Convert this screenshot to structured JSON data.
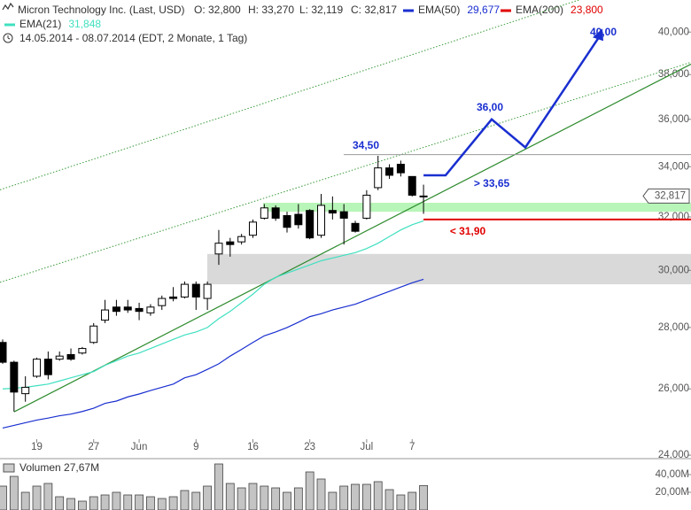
{
  "chart_data": {
    "type": "candlestick",
    "title": "Micron Technology Inc. (Last, USD)",
    "ohlc_labels": [
      "O: 32,800",
      "H: 33,270",
      "L: 32,119",
      "C: 32,817"
    ],
    "subtitle": "14.05.2014 - 08.07.2014 (EDT, 2 Monate, 1 Tag)",
    "categories": [
      null,
      null,
      null,
      "19",
      null,
      null,
      null,
      null,
      "27",
      null,
      null,
      null,
      "Jun",
      null,
      null,
      null,
      null,
      "9",
      null,
      null,
      null,
      null,
      "16",
      null,
      null,
      null,
      null,
      "23",
      null,
      null,
      null,
      null,
      "Jul",
      null,
      null,
      null,
      "7",
      null
    ],
    "open": [
      27.5,
      26.85,
      25.85,
      26.4,
      26.95,
      26.95,
      27.1,
      27.15,
      27.5,
      28.25,
      28.7,
      28.7,
      28.65,
      28.5,
      28.75,
      29.05,
      29.05,
      29.5,
      29.0,
      30.6,
      31.05,
      31.05,
      31.3,
      31.95,
      32.35,
      32.05,
      32.1,
      32.25,
      31.3,
      32.25,
      32.2,
      31.75,
      31.95,
      33.15,
      33.95,
      34.1,
      33.6,
      32.8
    ],
    "high": [
      27.6,
      26.9,
      26.4,
      27.0,
      27.2,
      27.2,
      27.3,
      27.35,
      28.15,
      28.95,
      28.95,
      28.95,
      28.85,
      28.8,
      29.1,
      29.4,
      29.6,
      29.6,
      29.6,
      31.5,
      31.2,
      31.35,
      31.9,
      32.5,
      32.45,
      32.2,
      32.5,
      32.3,
      32.9,
      32.8,
      32.5,
      31.85,
      33.05,
      34.45,
      34.1,
      34.25,
      33.6,
      33.27
    ],
    "low": [
      26.8,
      25.3,
      25.6,
      26.35,
      26.3,
      26.9,
      26.9,
      27.1,
      27.45,
      28.15,
      28.4,
      28.5,
      28.25,
      28.4,
      28.6,
      28.9,
      29.0,
      28.6,
      28.6,
      30.2,
      30.5,
      30.95,
      31.2,
      31.9,
      31.85,
      31.4,
      31.55,
      31.15,
      31.2,
      31.9,
      30.95,
      31.4,
      31.9,
      33.05,
      33.5,
      33.6,
      32.8,
      32.119
    ],
    "close": [
      26.85,
      25.9,
      26.05,
      26.95,
      26.45,
      27.05,
      26.95,
      27.3,
      28.05,
      28.6,
      28.55,
      28.6,
      28.55,
      28.7,
      29.0,
      29.0,
      29.5,
      29.05,
      29.5,
      31.0,
      30.95,
      31.25,
      31.8,
      32.35,
      31.95,
      31.6,
      31.7,
      31.2,
      32.45,
      32.15,
      31.95,
      31.45,
      32.85,
      33.95,
      33.65,
      33.75,
      32.85,
      32.817
    ],
    "up_color": "#ffffff",
    "down_color": "#000000",
    "last_label": "32,817",
    "overlays": [
      {
        "name": "EMA(50)",
        "value_label": "29,677",
        "color": "#1a2fd0",
        "values": [
          24.8,
          24.88,
          24.96,
          25.04,
          25.1,
          25.17,
          25.22,
          25.3,
          25.4,
          25.55,
          25.62,
          25.75,
          25.84,
          25.95,
          26.05,
          26.15,
          26.35,
          26.45,
          26.62,
          26.8,
          27.05,
          27.27,
          27.5,
          27.72,
          27.85,
          28.0,
          28.18,
          28.37,
          28.47,
          28.6,
          28.7,
          28.8,
          28.95,
          29.1,
          29.25,
          29.4,
          29.55,
          29.677
        ]
      },
      {
        "name": "EMA(200)",
        "value_label": "23,800",
        "color": "#e00000"
      },
      {
        "name": "EMA(21)",
        "value_label": "31,848",
        "color": "#40e0c0",
        "values": [
          26.0,
          26.02,
          26.05,
          26.1,
          26.15,
          26.25,
          26.35,
          26.45,
          26.55,
          26.75,
          26.9,
          27.05,
          27.15,
          27.3,
          27.45,
          27.6,
          27.75,
          27.85,
          28.0,
          28.3,
          28.55,
          28.85,
          29.15,
          29.5,
          29.75,
          29.9,
          30.05,
          30.2,
          30.35,
          30.45,
          30.55,
          30.65,
          30.8,
          31.0,
          31.25,
          31.5,
          31.7,
          31.848
        ]
      }
    ],
    "yscale": "log",
    "ylim": [
      23.9,
      40.7
    ],
    "yticks": [
      {
        "value": 24,
        "label": "24,000"
      },
      {
        "value": 26,
        "label": "26,000"
      },
      {
        "value": 28,
        "label": "28,000"
      },
      {
        "value": 30,
        "label": "30,000"
      },
      {
        "value": 32,
        "label": "32,000"
      },
      {
        "value": 34,
        "label": "34,000"
      },
      {
        "value": 36,
        "label": "36,000"
      },
      {
        "value": 38,
        "label": "38,000"
      },
      {
        "value": 40,
        "label": "40,000"
      }
    ],
    "levels": [
      {
        "value": 34.5,
        "label": "34,50",
        "color": "#999999"
      },
      {
        "value": 31.9,
        "label": "< 31,90",
        "color": "#e00000"
      }
    ],
    "zones": [
      {
        "from": 29.5,
        "to": 30.6,
        "color": "#d9d9d9"
      },
      {
        "from": 32.2,
        "to": 32.55,
        "color": "#b8f5b8"
      }
    ],
    "trendlines": [
      {
        "values": [
          25.11,
          32.6
        ],
        "color": "#2e8b2e",
        "style": "solid"
      },
      {
        "values": [
          29.6,
          34.8
        ],
        "color": "#3a9a3a",
        "style": "dotted"
      },
      {
        "values": [
          33.1,
          39.1
        ],
        "color": "#3a9a3a",
        "style": "dotted"
      }
    ],
    "forecast": {
      "color": "#1a2fd0",
      "values": [
        33.65,
        33.65,
        36.0,
        34.8,
        40.0
      ],
      "value_labels": [
        "> 33,65",
        null,
        "36,00",
        null,
        "40,00"
      ]
    },
    "volume": {
      "title": "Volumen 27,67M",
      "color": "#c4c4c4",
      "ylim": [
        0,
        56
      ],
      "yticks": [
        {
          "value": 20,
          "label": "20,00M"
        },
        {
          "value": 40,
          "label": "40,00M"
        }
      ],
      "values": [
        27,
        38,
        20,
        27,
        30,
        15,
        13,
        10,
        15,
        17,
        20,
        17,
        17,
        15,
        13,
        15,
        22,
        20,
        27,
        52,
        30,
        25,
        30,
        27,
        25,
        20,
        25,
        43,
        35,
        20,
        27,
        29,
        29,
        32,
        23,
        17,
        20,
        27.67
      ]
    }
  }
}
